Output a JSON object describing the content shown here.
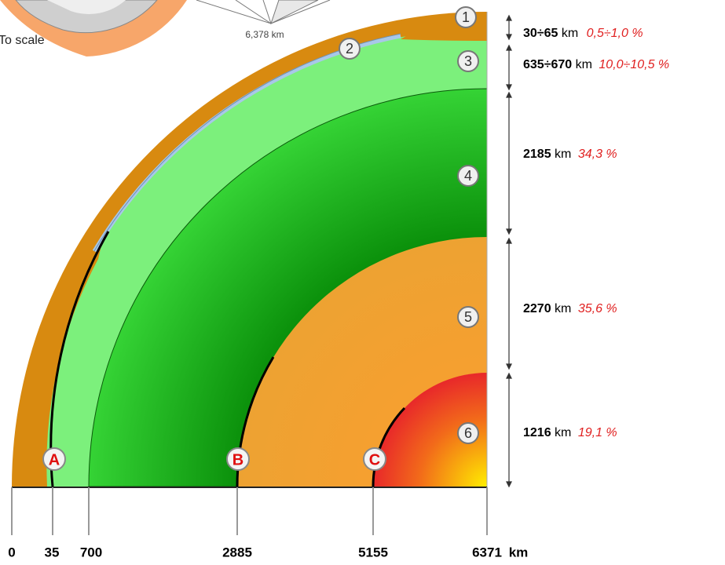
{
  "top_figure": {
    "distance_label": "6,378 km",
    "caption": "To scale"
  },
  "layers": [
    {
      "number": "1",
      "thickness": "30÷65",
      "unit": "km",
      "share": "0,5÷1,0 %"
    },
    {
      "number": "2"
    },
    {
      "number": "3",
      "thickness": "635÷670",
      "unit": "km",
      "share": "10,0÷10,5 %"
    },
    {
      "number": "4",
      "thickness": "2185",
      "unit": "km",
      "share": "34,3 %"
    },
    {
      "number": "5",
      "thickness": "2270",
      "unit": "km",
      "share": "35,6 %"
    },
    {
      "number": "6",
      "thickness": "1216",
      "unit": "km",
      "share": "19,1 %"
    }
  ],
  "boundaries": [
    "A",
    "B",
    "C"
  ],
  "scale": {
    "ticks": [
      "0",
      "35",
      "700",
      "2885",
      "5155",
      "6371"
    ],
    "unit": "km"
  }
}
